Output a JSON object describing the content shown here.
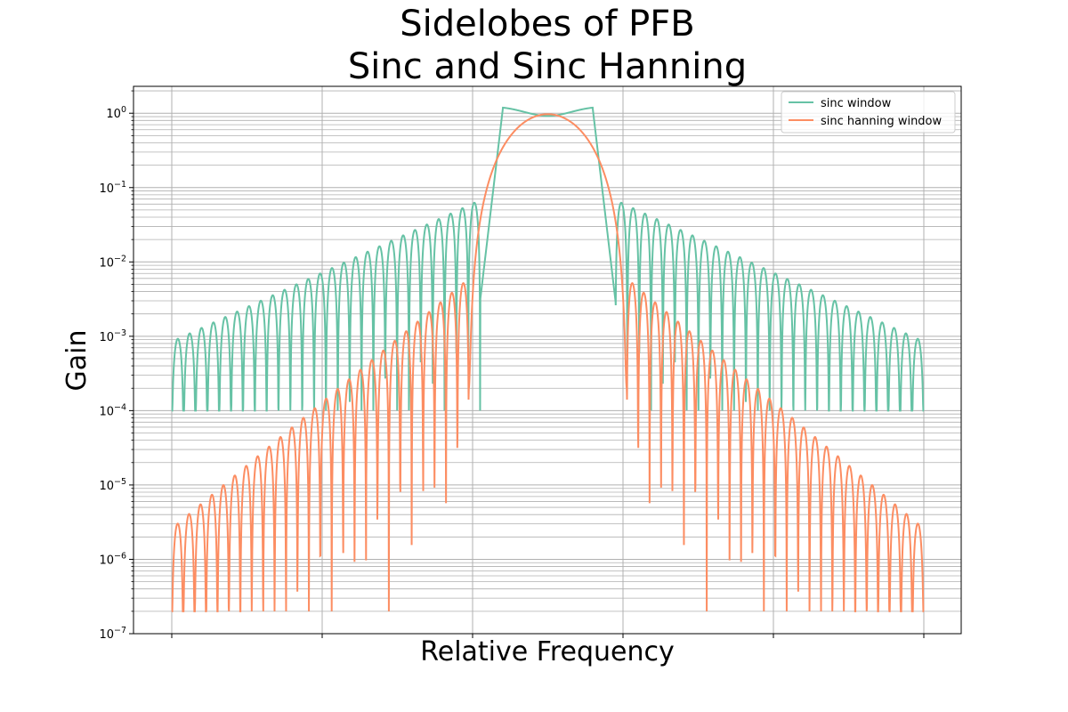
{
  "chart_data": {
    "type": "line",
    "title_line1": "Sidelobes of PFB",
    "title_line2": "Sinc and Sinc Hanning",
    "xlabel": "Relative Frequency",
    "ylabel": "Gain",
    "yscale": "log",
    "ylim": [
      1e-07,
      2.3
    ],
    "xlim": [
      -1.0,
      1.0
    ],
    "x_tick_labels": "none",
    "y_ticks": [
      {
        "value": 1,
        "base": "10",
        "exp": "0"
      },
      {
        "value": 0.1,
        "base": "10",
        "exp": "−1"
      },
      {
        "value": 0.01,
        "base": "10",
        "exp": "−2"
      },
      {
        "value": 0.001,
        "base": "10",
        "exp": "−3"
      },
      {
        "value": 0.0001,
        "base": "10",
        "exp": "−4"
      },
      {
        "value": 1e-05,
        "base": "10",
        "exp": "−5"
      },
      {
        "value": 1e-06,
        "base": "10",
        "exp": "−6"
      },
      {
        "value": 1e-07,
        "base": "10",
        "exp": "−7"
      }
    ],
    "grid": "major and minor",
    "legend_position": "upper right",
    "series": [
      {
        "name": "sinc window",
        "color": "#66c2a5",
        "main_lobe_peak": 1.1,
        "main_lobe_center_dip": 0.92,
        "first_sidelobe_peak": 0.068,
        "edge_sidelobe_peak": 0.00085,
        "sidelobe_null_min": 0.0001,
        "sidelobes_per_side": 26
      },
      {
        "name": "sinc hanning window",
        "color": "#fc8d62",
        "main_lobe_peak": 0.97,
        "first_sidelobe_peak": 0.006,
        "edge_sidelobe_peak": 2.6e-06,
        "sidelobe_null_min": 2e-07,
        "sidelobes_per_side": 26
      }
    ]
  }
}
